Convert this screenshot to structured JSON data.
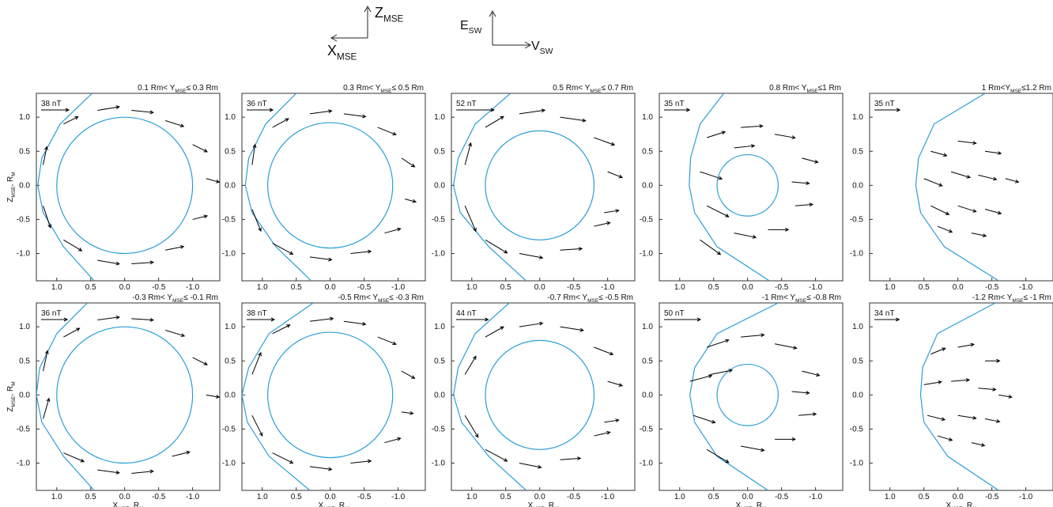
{
  "legend": {
    "z": [
      "Z",
      "MSE"
    ],
    "x": [
      "X",
      "MSE"
    ],
    "e": [
      "E",
      "SW"
    ],
    "v": [
      "V",
      "SW"
    ]
  },
  "axes": {
    "xlim": [
      1.3,
      -1.4
    ],
    "ylim": [
      -1.4,
      1.35
    ],
    "xticks": [
      {
        "value": 1,
        "label": "1.0"
      },
      0.5,
      {
        "value": 0,
        "label": "0.0"
      },
      -0.5,
      {
        "value": -1,
        "label": "-1.0"
      }
    ],
    "yticks": [
      {
        "value": 1,
        "label": "1.0"
      },
      0.5,
      {
        "value": 0,
        "label": "0.0"
      },
      -0.5,
      {
        "value": -1,
        "label": "-1.0"
      }
    ],
    "xlabel": [
      "X",
      "MSE",
      ", R",
      "M"
    ],
    "ylabel": [
      "Z",
      "MSE",
      ", R",
      "M"
    ]
  },
  "chart_data": [
    {
      "type": "quiver",
      "title": [
        "0.1 Rm< Y",
        "MSE",
        "≤ 0.3 Rm"
      ],
      "ref": {
        "label": "38 nT",
        "value": 38
      },
      "planet_radius": 1.0,
      "magnetopause": {
        "x": [
          0.48,
          0.95,
          1.22,
          1.28,
          1.2,
          0.9,
          0.45
        ],
        "z": [
          1.35,
          0.9,
          0.4,
          0,
          -0.4,
          -0.9,
          -1.4
        ]
      },
      "vectors": [
        [
          0.9,
          0.9,
          -20,
          10
        ],
        [
          0.4,
          1.1,
          -30,
          5
        ],
        [
          -0.1,
          1.1,
          -30,
          -3
        ],
        [
          -0.6,
          0.95,
          -25,
          -8
        ],
        [
          -1.0,
          0.6,
          -20,
          -10
        ],
        [
          -1.2,
          0.1,
          -18,
          -5
        ],
        [
          1.2,
          0.3,
          -5,
          25
        ],
        [
          1.2,
          -0.3,
          -10,
          -30
        ],
        [
          0.9,
          -0.8,
          -25,
          -15
        ],
        [
          0.4,
          -1.1,
          -30,
          -5
        ],
        [
          -0.1,
          -1.15,
          -30,
          2
        ],
        [
          -0.6,
          -0.95,
          -25,
          5
        ],
        [
          -1.0,
          -0.5,
          -20,
          5
        ]
      ]
    },
    {
      "type": "quiver",
      "title": [
        "0.3 Rm< Y",
        "MSE",
        "≤ 0.5 Rm"
      ],
      "ref": {
        "label": "36 nT",
        "value": 36
      },
      "planet_radius": 0.92,
      "magnetopause": {
        "x": [
          0.5,
          0.95,
          1.2,
          1.25,
          1.15,
          0.8,
          0.28
        ],
        "z": [
          1.35,
          0.9,
          0.4,
          0,
          -0.4,
          -0.9,
          -1.4
        ]
      },
      "vectors": [
        [
          0.85,
          0.85,
          -22,
          12
        ],
        [
          0.3,
          1.05,
          -30,
          4
        ],
        [
          -0.2,
          1.05,
          -30,
          -4
        ],
        [
          -0.7,
          0.85,
          -25,
          -10
        ],
        [
          -1.05,
          0.4,
          -18,
          -12
        ],
        [
          -1.1,
          -0.2,
          -15,
          -4
        ],
        [
          1.15,
          0.3,
          -4,
          28
        ],
        [
          1.15,
          -0.35,
          -12,
          -30
        ],
        [
          0.85,
          -0.85,
          -28,
          -15
        ],
        [
          0.3,
          -1.05,
          -30,
          -4
        ],
        [
          -0.3,
          -1.0,
          -28,
          3
        ],
        [
          -0.8,
          -0.7,
          -22,
          6
        ]
      ]
    },
    {
      "type": "quiver",
      "title": [
        "0.5 Rm< Y",
        "MSE",
        "≤ 0.7 Rm"
      ],
      "ref": {
        "label": "52 nT",
        "value": 52
      },
      "planet_radius": 0.8,
      "magnetopause": {
        "x": [
          0.43,
          0.95,
          1.2,
          1.27,
          1.17,
          0.75,
          0.2
        ],
        "z": [
          1.35,
          0.9,
          0.4,
          0,
          -0.4,
          -0.9,
          -1.4
        ]
      },
      "vectors": [
        [
          0.8,
          0.85,
          -25,
          15
        ],
        [
          0.3,
          1.05,
          -35,
          5
        ],
        [
          -0.3,
          1.0,
          -35,
          -5
        ],
        [
          -0.8,
          0.7,
          -28,
          -10
        ],
        [
          -1.0,
          0.2,
          -20,
          -8
        ],
        [
          -0.95,
          -0.4,
          -20,
          3
        ],
        [
          1.1,
          0.3,
          -8,
          30
        ],
        [
          1.1,
          -0.3,
          -15,
          -35
        ],
        [
          0.8,
          -0.8,
          -30,
          -18
        ],
        [
          0.3,
          -1.0,
          -32,
          -6
        ],
        [
          -0.3,
          -0.95,
          -30,
          2
        ],
        [
          -0.8,
          -0.6,
          -22,
          5
        ]
      ]
    },
    {
      "type": "quiver",
      "title": [
        "0.8 Rm< Y",
        "MSE",
        "≤1 Rm"
      ],
      "ref": {
        "label": "35 nT",
        "value": 35
      },
      "planet_radius": 0.45,
      "magnetopause": {
        "x": [
          0.35,
          0.7,
          0.84,
          0.86,
          0.78,
          0.45,
          -0.32
        ],
        "z": [
          1.35,
          0.9,
          0.4,
          0,
          -0.4,
          -0.9,
          -1.4
        ]
      },
      "vectors": [
        [
          0.6,
          0.7,
          -25,
          8
        ],
        [
          0.1,
          0.85,
          -30,
          2
        ],
        [
          -0.4,
          0.75,
          -28,
          -5
        ],
        [
          -0.8,
          0.4,
          -22,
          -6
        ],
        [
          0.7,
          0.2,
          -30,
          -10
        ],
        [
          0.6,
          -0.3,
          -30,
          -15
        ],
        [
          0.7,
          -0.8,
          -28,
          -20
        ],
        [
          0.2,
          -0.7,
          -30,
          -6
        ],
        [
          -0.3,
          -0.65,
          -28,
          0
        ],
        [
          -0.7,
          -0.3,
          -24,
          2
        ],
        [
          -0.65,
          0.05,
          -24,
          -2
        ],
        [
          0.2,
          0.55,
          -28,
          3
        ]
      ]
    },
    {
      "type": "quiver",
      "title": [
        "1 Rm<Y",
        "MSE",
        "≤1.2 Rm"
      ],
      "ref": {
        "label": "35 nT",
        "value": 35
      },
      "magnetopause": {
        "x": [
          -0.4,
          0.35,
          0.58,
          0.62,
          0.55,
          0.2,
          -0.6
        ],
        "z": [
          1.35,
          0.9,
          0.4,
          0,
          -0.4,
          -0.9,
          -1.4
        ]
      },
      "vectors": [
        [
          0.4,
          0.5,
          -22,
          -6
        ],
        [
          0.0,
          0.65,
          -25,
          -3
        ],
        [
          -0.4,
          0.5,
          -22,
          -3
        ],
        [
          0.5,
          0.1,
          -25,
          -10
        ],
        [
          0.1,
          0.2,
          -26,
          -8
        ],
        [
          -0.3,
          0.15,
          -25,
          -6
        ],
        [
          -0.7,
          0.1,
          -18,
          -5
        ],
        [
          0.4,
          -0.3,
          -25,
          -12
        ],
        [
          0.0,
          -0.3,
          -25,
          -8
        ],
        [
          -0.4,
          -0.35,
          -22,
          -6
        ],
        [
          0.3,
          -0.6,
          -20,
          -8
        ],
        [
          -0.2,
          -0.7,
          -20,
          -4
        ]
      ]
    },
    {
      "type": "quiver",
      "title": [
        "-0.3 Rm< Y",
        "MSE",
        "≤ -0.1 Rm"
      ],
      "ref": {
        "label": "36 nT",
        "value": 36
      },
      "planet_radius": 1.0,
      "magnetopause": {
        "x": [
          0.55,
          1.0,
          1.25,
          1.3,
          1.22,
          0.9,
          0.45
        ],
        "z": [
          1.35,
          0.9,
          0.4,
          0,
          -0.4,
          -0.9,
          -1.4
        ]
      },
      "vectors": [
        [
          0.9,
          0.85,
          -22,
          12
        ],
        [
          0.4,
          1.1,
          -30,
          4
        ],
        [
          -0.1,
          1.12,
          -30,
          -2
        ],
        [
          -0.6,
          0.95,
          -26,
          -8
        ],
        [
          -1.0,
          0.55,
          -20,
          -10
        ],
        [
          -1.2,
          0.0,
          -18,
          -3
        ],
        [
          1.2,
          0.35,
          -6,
          28
        ],
        [
          1.2,
          -0.35,
          -8,
          28
        ],
        [
          0.9,
          -0.85,
          -28,
          -12
        ],
        [
          0.4,
          -1.1,
          -30,
          -4
        ],
        [
          -0.1,
          -1.15,
          -30,
          3
        ],
        [
          -0.7,
          -0.9,
          -24,
          6
        ]
      ]
    },
    {
      "type": "quiver",
      "title": [
        "-0.5 Rm< Y",
        "MSE",
        "≤ -0.3 Rm"
      ],
      "ref": {
        "label": "38 nT",
        "value": 38
      },
      "planet_radius": 0.92,
      "magnetopause": {
        "x": [
          0.25,
          0.9,
          1.2,
          1.3,
          1.22,
          0.9,
          0.3
        ],
        "z": [
          1.35,
          0.9,
          0.4,
          0,
          -0.4,
          -0.9,
          -1.4
        ]
      },
      "vectors": [
        [
          0.85,
          0.9,
          -24,
          12
        ],
        [
          0.3,
          1.08,
          -32,
          4
        ],
        [
          -0.2,
          1.08,
          -30,
          -4
        ],
        [
          -0.7,
          0.85,
          -25,
          -10
        ],
        [
          -1.05,
          0.35,
          -18,
          -10
        ],
        [
          -1.05,
          -0.25,
          -16,
          -2
        ],
        [
          1.15,
          0.3,
          -12,
          30
        ],
        [
          1.15,
          -0.3,
          -14,
          -28
        ],
        [
          0.85,
          -0.85,
          -28,
          -14
        ],
        [
          0.3,
          -1.05,
          -30,
          -4
        ],
        [
          -0.3,
          -1.0,
          -28,
          3
        ],
        [
          -0.8,
          -0.7,
          -22,
          6
        ]
      ]
    },
    {
      "type": "quiver",
      "title": [
        "-0.7 Rm< Y",
        "MSE",
        "≤ -0.5 Rm"
      ],
      "ref": {
        "label": "44 nT",
        "value": 44
      },
      "planet_radius": 0.8,
      "magnetopause": {
        "x": [
          0.45,
          0.95,
          1.2,
          1.27,
          1.15,
          0.75,
          0.2
        ],
        "z": [
          1.35,
          0.9,
          0.4,
          0,
          -0.4,
          -0.9,
          -1.4
        ]
      },
      "vectors": [
        [
          0.8,
          0.85,
          -25,
          14
        ],
        [
          0.3,
          1.0,
          -32,
          5
        ],
        [
          -0.3,
          1.0,
          -32,
          -5
        ],
        [
          -0.8,
          0.7,
          -26,
          -10
        ],
        [
          -1.0,
          0.2,
          -20,
          -6
        ],
        [
          -0.95,
          -0.4,
          -20,
          3
        ],
        [
          1.1,
          0.3,
          -15,
          25
        ],
        [
          1.1,
          -0.3,
          -18,
          -30
        ],
        [
          0.8,
          -0.8,
          -30,
          -16
        ],
        [
          0.3,
          -1.0,
          -30,
          -6
        ],
        [
          -0.3,
          -0.95,
          -28,
          2
        ],
        [
          -0.8,
          -0.6,
          -22,
          5
        ]
      ]
    },
    {
      "type": "quiver",
      "title": [
        "-1 Rm< Y",
        "MSE",
        "≤ -0.8 Rm"
      ],
      "ref": {
        "label": "50 nT",
        "value": 50
      },
      "planet_radius": 0.45,
      "magnetopause": {
        "x": [
          -0.45,
          0.45,
          0.78,
          0.85,
          0.78,
          0.45,
          -0.3
        ],
        "z": [
          1.35,
          0.9,
          0.4,
          0,
          -0.4,
          -0.9,
          -1.4
        ]
      },
      "vectors": [
        [
          0.6,
          0.7,
          -30,
          10
        ],
        [
          0.1,
          0.85,
          -32,
          3
        ],
        [
          -0.4,
          0.75,
          -30,
          -6
        ],
        [
          -0.8,
          0.35,
          -24,
          -6
        ],
        [
          0.85,
          0.2,
          -30,
          8
        ],
        [
          0.8,
          -0.3,
          -30,
          -10
        ],
        [
          0.6,
          -0.8,
          -30,
          -18
        ],
        [
          0.1,
          -0.75,
          -32,
          -6
        ],
        [
          -0.4,
          -0.65,
          -28,
          0
        ],
        [
          -0.75,
          -0.3,
          -24,
          2
        ],
        [
          -0.65,
          0.05,
          -24,
          -2
        ],
        [
          0.55,
          0.3,
          -30,
          6
        ]
      ]
    },
    {
      "type": "quiver",
      "title": [
        "-1.2 Rm< Y",
        "MSE",
        "≤ -1 Rm"
      ],
      "ref": {
        "label": "34 nT",
        "value": 34
      },
      "magnetopause": {
        "x": [
          -0.55,
          0.3,
          0.52,
          0.55,
          0.5,
          0.15,
          -0.6
        ],
        "z": [
          1.35,
          0.9,
          0.4,
          0,
          -0.4,
          -0.9,
          -1.4
        ]
      },
      "vectors": [
        [
          0.4,
          0.6,
          -20,
          8
        ],
        [
          0.0,
          0.7,
          -22,
          4
        ],
        [
          -0.4,
          0.5,
          -20,
          0
        ],
        [
          0.5,
          0.15,
          -24,
          4
        ],
        [
          0.1,
          0.2,
          -25,
          2
        ],
        [
          -0.3,
          0.1,
          -24,
          -2
        ],
        [
          -0.6,
          0.0,
          -18,
          -3
        ],
        [
          0.45,
          -0.3,
          -24,
          -6
        ],
        [
          0.0,
          -0.3,
          -25,
          -4
        ],
        [
          -0.4,
          -0.35,
          -20,
          -4
        ],
        [
          0.3,
          -0.6,
          -20,
          -6
        ],
        [
          -0.2,
          -0.7,
          -18,
          -4
        ]
      ]
    }
  ]
}
